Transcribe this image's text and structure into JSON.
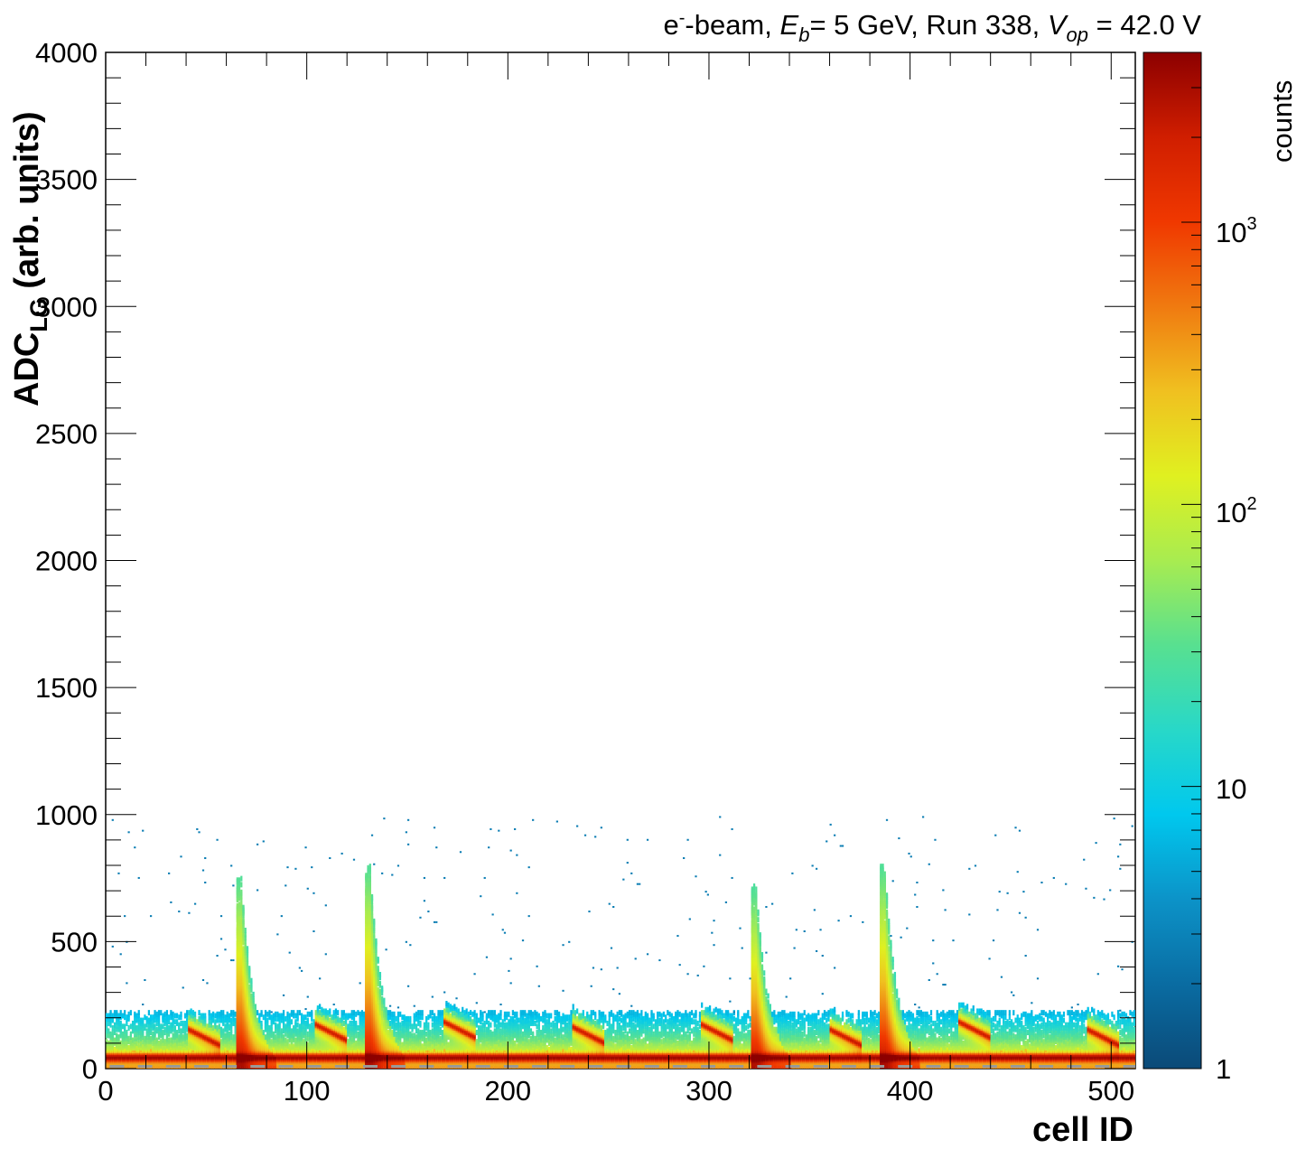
{
  "chart_data": {
    "type": "heatmap",
    "title": {
      "p1": "e",
      "p1_sup": "-",
      "p2": "-beam, ",
      "p3": "E",
      "p3_sub": "b",
      "p4": "= 5 GeV, Run 338, ",
      "p5": "V",
      "p5_sub": "op",
      "p6": " = 42.0 V"
    },
    "xlabel": "cell ID",
    "ylabel": {
      "main": "ADC",
      "sub": "LG",
      "suffix": " (arb. units)"
    },
    "zlabel": "counts",
    "xlim": [
      0,
      512
    ],
    "ylim": [
      0,
      4000
    ],
    "zlim": [
      1,
      4000
    ],
    "zscale": "log",
    "colormap": "ROOT kBird/rainbow (dark blue to dark red)",
    "colors": [
      "#0b4a78",
      "#0a6ca2",
      "#0c93c8",
      "#00c8ee",
      "#28d8c8",
      "#58e090",
      "#a8ec50",
      "#e0f020",
      "#f0c020",
      "#f07a10",
      "#f03800",
      "#d01e00",
      "#8c0000"
    ],
    "xticks": [
      0,
      100,
      200,
      300,
      400,
      500
    ],
    "xtick_labels": [
      "0",
      "100",
      "200",
      "300",
      "400",
      "500"
    ],
    "yticks": [
      0,
      500,
      1000,
      1500,
      2000,
      2500,
      3000,
      3500,
      4000
    ],
    "ytick_labels": [
      "0",
      "500",
      "1000",
      "1500",
      "2000",
      "2500",
      "3000",
      "3500",
      "4000"
    ],
    "ztick_labels": {
      "one": "1",
      "ten": "10",
      "hundred_base": "10",
      "hundred_exp": "2",
      "thousand_base": "10",
      "thousand_exp": "3"
    },
    "pedestal_adc": 50,
    "shower_peaks": [
      {
        "cell": 67,
        "max_adc": 750,
        "intensity": 1.0
      },
      {
        "cell": 131,
        "max_adc": 800,
        "intensity": 1.0
      },
      {
        "cell": 323,
        "max_adc": 720,
        "intensity": 0.95
      },
      {
        "cell": 387,
        "max_adc": 800,
        "intensity": 1.0
      }
    ],
    "secondary_clusters": [
      {
        "cell_start": 41,
        "cell_end": 56,
        "adc": 160
      },
      {
        "cell_start": 104,
        "cell_end": 119,
        "adc": 180
      },
      {
        "cell_start": 168,
        "cell_end": 183,
        "adc": 190
      },
      {
        "cell_start": 232,
        "cell_end": 247,
        "adc": 170
      },
      {
        "cell_start": 296,
        "cell_end": 311,
        "adc": 180
      },
      {
        "cell_start": 360,
        "cell_end": 375,
        "adc": 160
      },
      {
        "cell_start": 424,
        "cell_end": 439,
        "adc": 190
      },
      {
        "cell_start": 488,
        "cell_end": 503,
        "adc": 160
      }
    ],
    "grid": false
  }
}
